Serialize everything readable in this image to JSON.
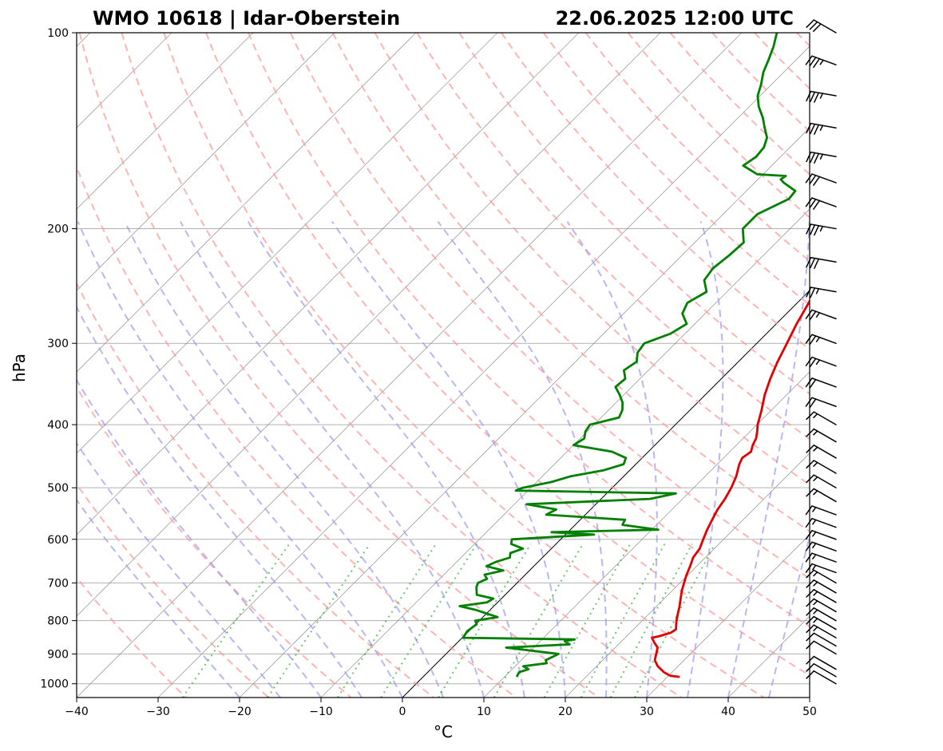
{
  "chart_data": {
    "type": "line",
    "title_left": "WMO 10618 | Idar-Oberstein",
    "title_right": "22.06.2025 12:00 UTC",
    "xlabel": "°C",
    "ylabel": "hPa",
    "xlim": [
      -40,
      50
    ],
    "ylim": [
      1050,
      100
    ],
    "x_ticks": [
      -40,
      -30,
      -20,
      -10,
      0,
      10,
      20,
      30,
      40,
      50
    ],
    "y_ticks": [
      100,
      200,
      300,
      400,
      500,
      600,
      700,
      800,
      900,
      1000
    ],
    "skew": "skew-T log-p",
    "grid": true,
    "colors": {
      "temperature": "#e00000",
      "dewpoint": "#008000",
      "dry_adiabats": "#ff9999",
      "moist_adiabats": "#9999ee",
      "mixing_ratio": "#33aa33",
      "isotherms": "#888888"
    },
    "series": [
      {
        "key": "temperature",
        "points": [
          [
            976,
            31.5
          ],
          [
            972,
            30.2
          ],
          [
            960,
            29.0
          ],
          [
            940,
            27.5
          ],
          [
            920,
            26.4
          ],
          [
            900,
            25.8
          ],
          [
            880,
            25.2
          ],
          [
            865,
            24.2
          ],
          [
            850,
            23.3
          ],
          [
            845,
            24.0
          ],
          [
            835,
            25.0
          ],
          [
            825,
            25.2
          ],
          [
            800,
            24.2
          ],
          [
            780,
            23.5
          ],
          [
            760,
            22.8
          ],
          [
            740,
            22.0
          ],
          [
            720,
            21.2
          ],
          [
            700,
            20.5
          ],
          [
            680,
            19.8
          ],
          [
            660,
            19.2
          ],
          [
            640,
            18.5
          ],
          [
            620,
            18.2
          ],
          [
            600,
            17.5
          ],
          [
            580,
            16.8
          ],
          [
            560,
            16.2
          ],
          [
            540,
            15.6
          ],
          [
            520,
            15.2
          ],
          [
            500,
            14.6
          ],
          [
            480,
            13.8
          ],
          [
            460,
            12.7
          ],
          [
            450,
            12.3
          ],
          [
            440,
            12.6
          ],
          [
            430,
            12.0
          ],
          [
            420,
            11.6
          ],
          [
            410,
            10.9
          ],
          [
            400,
            10.1
          ],
          [
            380,
            8.8
          ],
          [
            360,
            7.3
          ],
          [
            340,
            6.0
          ],
          [
            320,
            4.8
          ],
          [
            300,
            3.7
          ],
          [
            280,
            2.5
          ],
          [
            260,
            1.4
          ],
          [
            240,
            0.2
          ],
          [
            220,
            -1.3
          ],
          [
            205,
            -2.4
          ],
          [
            200,
            -2.6
          ],
          [
            190,
            -2.0
          ],
          [
            180,
            -3.0
          ],
          [
            175,
            -3.3
          ],
          [
            170,
            -3.2
          ],
          [
            168,
            -2.5
          ],
          [
            166,
            -1.8
          ],
          [
            164,
            -0.2
          ],
          [
            162,
            2.0
          ],
          [
            160,
            4.0
          ],
          [
            158,
            6.0
          ],
          [
            156,
            8.0
          ],
          [
            154,
            9.4
          ],
          [
            150,
            10.7
          ],
          [
            145,
            11.6
          ],
          [
            140,
            12.5
          ],
          [
            135,
            13.3
          ],
          [
            130,
            14.0
          ],
          [
            125,
            14.6
          ],
          [
            120,
            15.5
          ],
          [
            115,
            16.5
          ],
          [
            110,
            17.3
          ],
          [
            105,
            17.8
          ],
          [
            100,
            18.1
          ]
        ]
      },
      {
        "key": "dewpoint",
        "points": [
          [
            976,
            11.5
          ],
          [
            960,
            11.2
          ],
          [
            950,
            12.0
          ],
          [
            940,
            11.0
          ],
          [
            930,
            13.5
          ],
          [
            920,
            13.0
          ],
          [
            900,
            13.8
          ],
          [
            880,
            6.6
          ],
          [
            870,
            14.0
          ],
          [
            860,
            13.0
          ],
          [
            855,
            14.0
          ],
          [
            850,
            0.1
          ],
          [
            830,
            -0.2
          ],
          [
            810,
            0.1
          ],
          [
            800,
            -0.5
          ],
          [
            790,
            1.8
          ],
          [
            780,
            0.0
          ],
          [
            770,
            -1.8
          ],
          [
            760,
            -4.2
          ],
          [
            750,
            -1.3
          ],
          [
            740,
            -1.0
          ],
          [
            730,
            -3.5
          ],
          [
            710,
            -4.5
          ],
          [
            700,
            -4.8
          ],
          [
            690,
            -4.2
          ],
          [
            680,
            -5.0
          ],
          [
            670,
            -3.2
          ],
          [
            660,
            -5.8
          ],
          [
            650,
            -5.2
          ],
          [
            640,
            -4.0
          ],
          [
            630,
            -4.5
          ],
          [
            620,
            -3.5
          ],
          [
            610,
            -5.5
          ],
          [
            600,
            -6.0
          ],
          [
            590,
            3.5
          ],
          [
            585,
            -2.0
          ],
          [
            580,
            10.8
          ],
          [
            570,
            5.8
          ],
          [
            560,
            5.5
          ],
          [
            550,
            -4.8
          ],
          [
            540,
            -4.2
          ],
          [
            530,
            -8.5
          ],
          [
            520,
            6.0
          ],
          [
            510,
            8.5
          ],
          [
            505,
            -11.5
          ],
          [
            500,
            -11.0
          ],
          [
            490,
            -8.2
          ],
          [
            480,
            -6.5
          ],
          [
            470,
            -3.2
          ],
          [
            460,
            -1.5
          ],
          [
            450,
            -2.0
          ],
          [
            440,
            -4.5
          ],
          [
            430,
            -10.0
          ],
          [
            420,
            -9.5
          ],
          [
            410,
            -10.2
          ],
          [
            400,
            -10.5
          ],
          [
            390,
            -7.8
          ],
          [
            380,
            -8.3
          ],
          [
            370,
            -9.2
          ],
          [
            360,
            -10.5
          ],
          [
            350,
            -12.0
          ],
          [
            340,
            -11.8
          ],
          [
            330,
            -13.0
          ],
          [
            320,
            -12.5
          ],
          [
            310,
            -13.5
          ],
          [
            300,
            -13.8
          ],
          [
            290,
            -11.8
          ],
          [
            280,
            -11.0
          ],
          [
            270,
            -12.8
          ],
          [
            260,
            -13.5
          ],
          [
            250,
            -12.5
          ],
          [
            240,
            -14.2
          ],
          [
            230,
            -14.6
          ],
          [
            220,
            -14.2
          ],
          [
            210,
            -14.0
          ],
          [
            200,
            -15.8
          ],
          [
            190,
            -15.8
          ],
          [
            180,
            -13.8
          ],
          [
            175,
            -14.0
          ],
          [
            170,
            -16.4
          ],
          [
            168,
            -17.2
          ],
          [
            166,
            -17.0
          ],
          [
            165,
            -20.7
          ],
          [
            160,
            -23.5
          ],
          [
            155,
            -23.0
          ],
          [
            150,
            -23.2
          ],
          [
            145,
            -24.0
          ],
          [
            140,
            -25.5
          ],
          [
            135,
            -27.0
          ],
          [
            130,
            -28.8
          ],
          [
            125,
            -30.3
          ],
          [
            120,
            -31.3
          ],
          [
            115,
            -32.5
          ],
          [
            110,
            -33.4
          ],
          [
            105,
            -34.4
          ],
          [
            100,
            -35.7
          ]
        ]
      }
    ],
    "wind_barbs": [
      {
        "p": 1000,
        "speed": 10,
        "dir": 300
      },
      {
        "p": 975,
        "speed": 10,
        "dir": 300
      },
      {
        "p": 950,
        "speed": 10,
        "dir": 300
      },
      {
        "p": 900,
        "speed": 10,
        "dir": 300
      },
      {
        "p": 875,
        "speed": 10,
        "dir": 300
      },
      {
        "p": 850,
        "speed": 15,
        "dir": 300
      },
      {
        "p": 825,
        "speed": 15,
        "dir": 300
      },
      {
        "p": 800,
        "speed": 15,
        "dir": 300
      },
      {
        "p": 775,
        "speed": 15,
        "dir": 300
      },
      {
        "p": 750,
        "speed": 15,
        "dir": 300
      },
      {
        "p": 725,
        "speed": 15,
        "dir": 300
      },
      {
        "p": 700,
        "speed": 15,
        "dir": 300
      },
      {
        "p": 675,
        "speed": 15,
        "dir": 290
      },
      {
        "p": 650,
        "speed": 15,
        "dir": 290
      },
      {
        "p": 625,
        "speed": 15,
        "dir": 290
      },
      {
        "p": 600,
        "speed": 15,
        "dir": 290
      },
      {
        "p": 575,
        "speed": 15,
        "dir": 290
      },
      {
        "p": 550,
        "speed": 15,
        "dir": 290
      },
      {
        "p": 525,
        "speed": 15,
        "dir": 300
      },
      {
        "p": 500,
        "speed": 15,
        "dir": 300
      },
      {
        "p": 475,
        "speed": 15,
        "dir": 300
      },
      {
        "p": 450,
        "speed": 15,
        "dir": 300
      },
      {
        "p": 425,
        "speed": 15,
        "dir": 300
      },
      {
        "p": 400,
        "speed": 15,
        "dir": 300
      },
      {
        "p": 375,
        "speed": 20,
        "dir": 290
      },
      {
        "p": 350,
        "speed": 20,
        "dir": 290
      },
      {
        "p": 325,
        "speed": 25,
        "dir": 290
      },
      {
        "p": 300,
        "speed": 25,
        "dir": 290
      },
      {
        "p": 275,
        "speed": 25,
        "dir": 290
      },
      {
        "p": 250,
        "speed": 25,
        "dir": 280
      },
      {
        "p": 225,
        "speed": 30,
        "dir": 280
      },
      {
        "p": 200,
        "speed": 35,
        "dir": 280
      },
      {
        "p": 185,
        "speed": 30,
        "dir": 290
      },
      {
        "p": 170,
        "speed": 30,
        "dir": 290
      },
      {
        "p": 155,
        "speed": 35,
        "dir": 280
      },
      {
        "p": 140,
        "speed": 35,
        "dir": 280
      },
      {
        "p": 125,
        "speed": 35,
        "dir": 280
      },
      {
        "p": 112,
        "speed": 35,
        "dir": 290
      },
      {
        "p": 100,
        "speed": 30,
        "dir": 300
      }
    ]
  }
}
